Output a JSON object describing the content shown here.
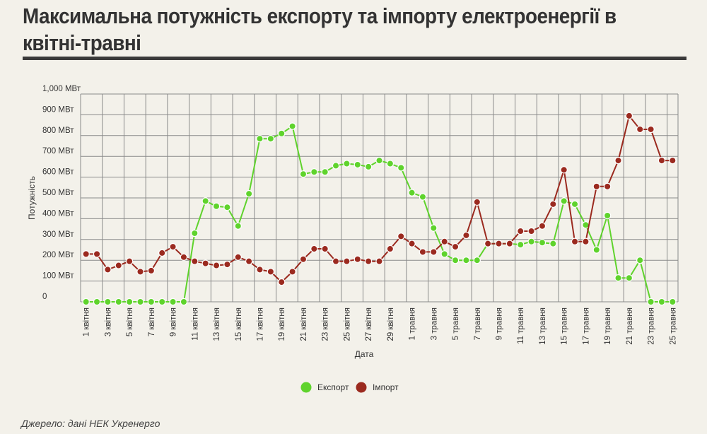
{
  "title": "Максимальна потужність експорту та імпорту електроенергії в квітні-травні",
  "source": "Джерело: дані НЕК Укренерго",
  "colors": {
    "export": "#5fd32c",
    "import": "#9b2a1f",
    "grid": "#8a8a8a",
    "title_rule": "#3a3a3a"
  },
  "chart_data": {
    "type": "line",
    "xlabel": "Дата",
    "ylabel": "Потужність",
    "ylim": [
      0,
      1000
    ],
    "yticks": [
      {
        "value": 0,
        "label": "0"
      },
      {
        "value": 100,
        "label": "100 МВт"
      },
      {
        "value": 200,
        "label": "200 МВт"
      },
      {
        "value": 300,
        "label": "300 МВт"
      },
      {
        "value": 400,
        "label": "400 МВт"
      },
      {
        "value": 500,
        "label": "500 МВт"
      },
      {
        "value": 600,
        "label": "600 МВт"
      },
      {
        "value": 700,
        "label": "700 МВт"
      },
      {
        "value": 800,
        "label": "800 МВт"
      },
      {
        "value": 900,
        "label": "900 МВт"
      },
      {
        "value": 1000,
        "label": "1,000 МВт"
      }
    ],
    "grid": true,
    "legend_position": "bottom",
    "categories": [
      "1 квітня",
      "2 квітня",
      "3 квітня",
      "4 квітня",
      "5 квітня",
      "6 квітня",
      "7 квітня",
      "8 квітня",
      "9 квітня",
      "10 квітня",
      "11 квітня",
      "12 квітня",
      "13 квітня",
      "14 квітня",
      "15 квітня",
      "16 квітня",
      "17 квітня",
      "18 квітня",
      "19 квітня",
      "20 квітня",
      "21 квітня",
      "22 квітня",
      "23 квітня",
      "24 квітня",
      "25 квітня",
      "26 квітня",
      "27 квітня",
      "28 квітня",
      "29 квітня",
      "30 квітня",
      "1 травня",
      "2 травня",
      "3 травня",
      "4 травня",
      "5 травня",
      "6 травня",
      "7 травня",
      "8 травня",
      "9 травня",
      "10 травня",
      "11 травня",
      "12 травня",
      "13 травня",
      "14 травня",
      "15 травня",
      "16 травня",
      "17 травня",
      "18 травня",
      "19 травня",
      "20 травня",
      "21 травня",
      "22 травня",
      "23 травня",
      "24 травня",
      "25 травня"
    ],
    "tick_labels": [
      "1 квітня",
      "3 квітня",
      "5 квітня",
      "7 квітня",
      "9 квітня",
      "11 квітня",
      "13 квітня",
      "15 квітня",
      "17 квітня",
      "19 квітня",
      "21 квітня",
      "23 квітня",
      "25 квітня",
      "27 квітня",
      "29 квітня",
      "1 травня",
      "3 травня",
      "5 травня",
      "7 травня",
      "9 травня",
      "11 травня",
      "13 травня",
      "15 травня",
      "17 травня",
      "19 травня",
      "21 травня",
      "23 травня",
      "25 травня"
    ],
    "series": [
      {
        "name": "Експорт",
        "values": [
          0,
          0,
          0,
          0,
          0,
          0,
          0,
          0,
          0,
          0,
          330,
          485,
          460,
          455,
          365,
          520,
          785,
          785,
          810,
          845,
          615,
          625,
          625,
          655,
          665,
          660,
          650,
          680,
          665,
          645,
          525,
          505,
          355,
          230,
          200,
          200,
          200,
          280,
          280,
          280,
          275,
          290,
          285,
          280,
          485,
          470,
          370,
          250,
          415,
          115,
          115,
          200,
          0,
          0,
          0
        ]
      },
      {
        "name": "Імпорт",
        "values": [
          230,
          230,
          155,
          175,
          195,
          145,
          150,
          235,
          265,
          215,
          195,
          185,
          175,
          180,
          215,
          195,
          155,
          145,
          95,
          145,
          205,
          255,
          255,
          195,
          195,
          205,
          195,
          195,
          255,
          315,
          280,
          240,
          240,
          290,
          265,
          320,
          480,
          280,
          280,
          280,
          340,
          340,
          365,
          470,
          635,
          290,
          290,
          555,
          555,
          680,
          895,
          830,
          830,
          680,
          680
        ]
      }
    ]
  }
}
